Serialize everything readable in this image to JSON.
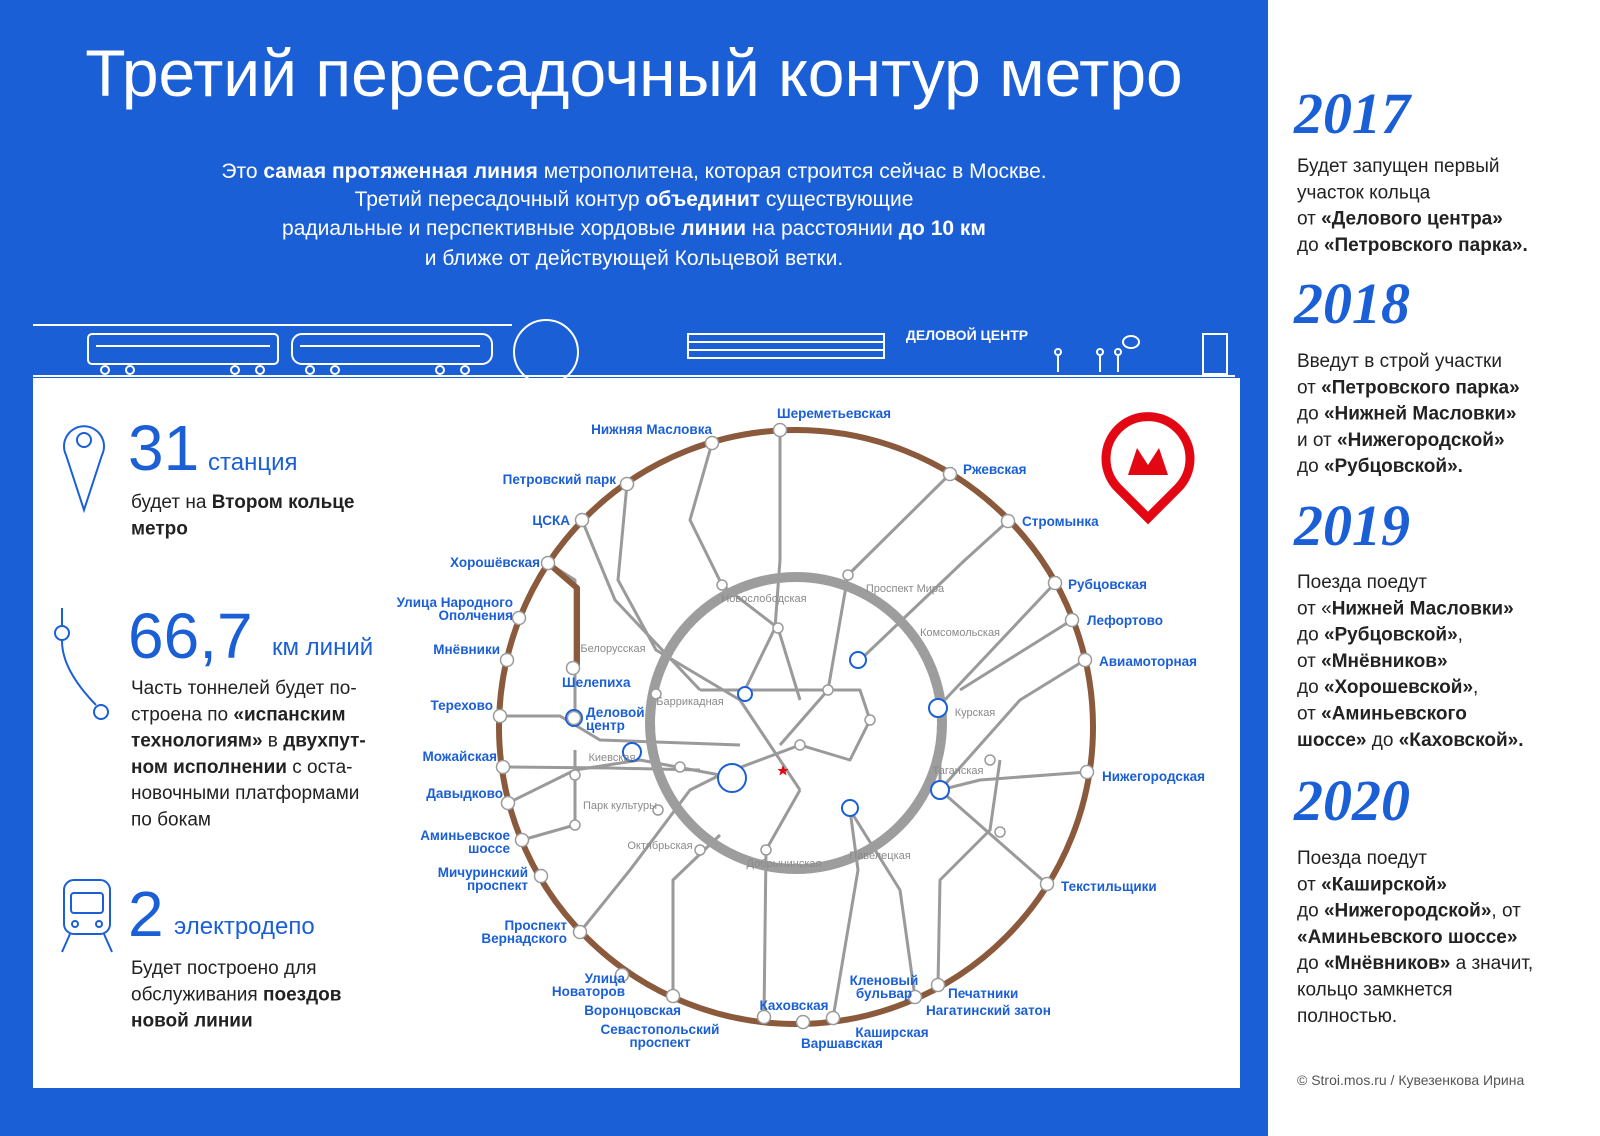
{
  "header": {
    "title": "Третий пересадочный контур метро"
  },
  "intro": {
    "lines": [
      [
        "Это ",
        {
          "text": "самая протяженная линия",
          "bold": true
        },
        " метрополитена, которая строится сейчас в Москве."
      ],
      [
        "Третий пересадочный контур ",
        {
          "text": "объединит",
          "bold": true
        },
        " существующие"
      ],
      [
        "радиальные и перспективные хордовые ",
        {
          "text": "линии",
          "bold": true
        },
        " на расстоянии ",
        {
          "text": "до 10 км",
          "bold": true
        }
      ],
      [
        "и ближе от действующей Кольцевой ветки."
      ]
    ]
  },
  "banner": {
    "label": "ДЕЛОВОЙ ЦЕНТР"
  },
  "stats": [
    {
      "number": "31",
      "unit": "станция",
      "lines": [
        [
          "будет на ",
          {
            "text": "Втором кольце",
            "bold": true
          }
        ],
        [
          {
            "text": "метро",
            "bold": true
          }
        ]
      ]
    },
    {
      "number": "66,7",
      "unit": "км линий",
      "lines": [
        [
          "Часть тоннелей будет по-"
        ],
        [
          "строена по ",
          {
            "text": "«испанским",
            "bold": true
          }
        ],
        [
          {
            "text": "технологиям»",
            "bold": true
          },
          " в ",
          {
            "text": "двухпут-",
            "bold": true
          }
        ],
        [
          {
            "text": "ном исполнении",
            "bold": true
          },
          " с оста-"
        ],
        [
          "новочными платформами"
        ],
        [
          "по бокам"
        ]
      ]
    },
    {
      "number": "2",
      "unit": "электродепо",
      "lines": [
        [
          "Будет построено для"
        ],
        [
          "обслуживания ",
          {
            "text": "поездов",
            "bold": true
          }
        ],
        [
          {
            "text": "новой линии",
            "bold": true
          }
        ]
      ]
    }
  ],
  "map": {
    "stations": [
      "Шереметьевская",
      "Нижняя Масловка",
      "Ржевская",
      "Петровский парк",
      "Стромынка",
      "ЦСКА",
      "Хорошёвская",
      "Рубцовская",
      [
        "Улица Народного",
        "Ополчения"
      ],
      "Лефортово",
      "Мнёвники",
      "Авиамоторная",
      "Шелепиха",
      "Терехово",
      [
        "Деловой",
        "центр"
      ],
      "Можайская",
      "Нижегородская",
      "Давыдково",
      [
        "Аминьевское",
        "шоссе"
      ],
      [
        "Мичуринский",
        "проспект"
      ],
      "Текстильщики",
      [
        "Проспект",
        "Вернадского"
      ],
      [
        "Улица",
        "Новаторов"
      ],
      "Печатники",
      [
        "Кленовый",
        "бульвар"
      ],
      "Нагатинский затон",
      "Воронцовская",
      "Каховская",
      [
        "Севастопольский",
        "проспект"
      ],
      "Каширская",
      "Варшавская"
    ],
    "minor_stations": [
      "Белорусская",
      "Новослободская",
      "Проспект Мира",
      "Комсомольская",
      "Баррикадная",
      "Курская",
      "Киевская",
      "Таганская",
      "Парк культуры",
      "Октябрьская",
      "Добрынинская",
      "Павелецкая"
    ]
  },
  "timeline": [
    {
      "year": "2017",
      "lines": [
        [
          "Будет запущен первый"
        ],
        [
          "участок кольца"
        ],
        [
          "от ",
          {
            "text": "«Делового центра»",
            "bold": true
          }
        ],
        [
          "до ",
          {
            "text": "«Петровского парка».",
            "bold": true
          }
        ]
      ]
    },
    {
      "year": "2018",
      "lines": [
        [
          "Введут в строй участки"
        ],
        [
          "от ",
          {
            "text": "«Петровского парка»",
            "bold": true
          }
        ],
        [
          "до ",
          {
            "text": "«Нижней Масловки»",
            "bold": true
          }
        ],
        [
          "и от ",
          {
            "text": "«Нижегородской»",
            "bold": true
          }
        ],
        [
          "до ",
          {
            "text": "«Рубцовской».",
            "bold": true
          }
        ]
      ]
    },
    {
      "year": "2019",
      "lines": [
        [
          "Поезда поедут"
        ],
        [
          "от «",
          {
            "text": "Нижней Масловки»",
            "bold": true
          }
        ],
        [
          "до ",
          {
            "text": "«Рубцовской»",
            "bold": true
          },
          ","
        ],
        [
          "от ",
          {
            "text": "«Мнёвников»",
            "bold": true
          }
        ],
        [
          "до ",
          {
            "text": "«Хорошевской»",
            "bold": true
          },
          ","
        ],
        [
          "от ",
          {
            "text": "«Аминьевского",
            "bold": true
          }
        ],
        [
          {
            "text": "шоссе»",
            "bold": true
          },
          " до ",
          {
            "text": "«Каховской».",
            "bold": true
          }
        ]
      ]
    },
    {
      "year": "2020",
      "lines": [
        [
          "Поезда поедут"
        ],
        [
          "от ",
          {
            "text": "«Каширской»",
            "bold": true
          }
        ],
        [
          "до ",
          {
            "text": "«Нижегородской»",
            "bold": true
          },
          ", от"
        ],
        [
          {
            "text": "«Аминьевского шоссе»",
            "bold": true
          }
        ],
        [
          "до ",
          {
            "text": "«Мнёвников»",
            "bold": true
          },
          " а значит,"
        ],
        [
          "кольцо замкнется"
        ],
        [
          "полностью."
        ]
      ]
    }
  ],
  "credit": "© Stroi.mos.ru / Кувезенкова Ирина"
}
